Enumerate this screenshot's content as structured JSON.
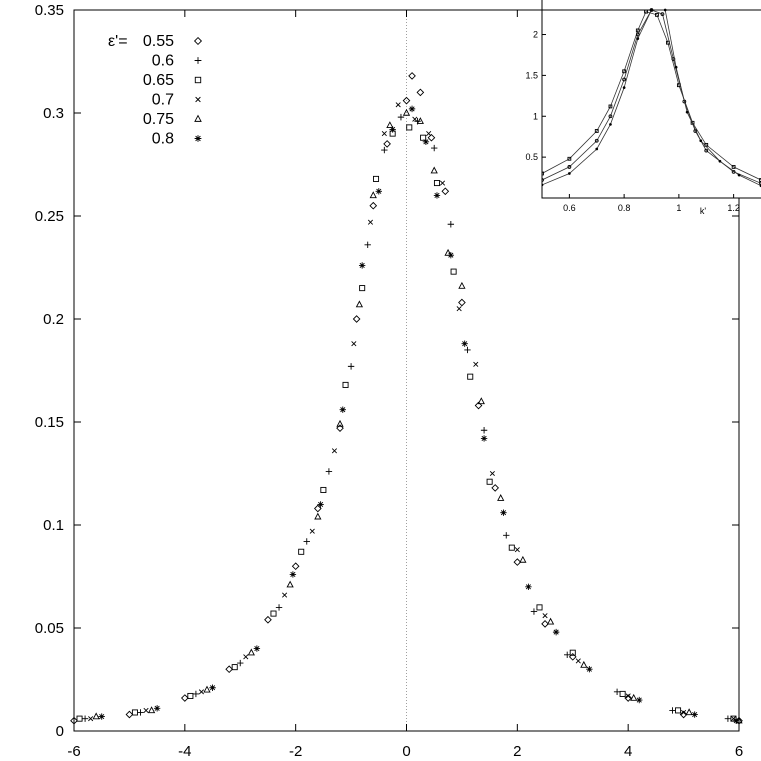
{
  "chart_data": {
    "type": "scatter",
    "title": "",
    "xlabel": "",
    "ylabel": "",
    "xlim": [
      -6,
      6
    ],
    "ylim": [
      0,
      0.35
    ],
    "x_ticks": [
      "-6",
      "-4",
      "-2",
      "0",
      "2",
      "4",
      "6"
    ],
    "y_ticks": [
      "0",
      "0.05",
      "0.1",
      "0.15",
      "0.2",
      "0.25",
      "0.3",
      "0.35"
    ],
    "grid": false,
    "reference_line_x": 0,
    "legend_position": "top-left",
    "legend_title": "ε'=",
    "series": [
      {
        "name": "0.55",
        "marker": "diamond",
        "points": [
          [
            -6.0,
            0.005
          ],
          [
            -5.0,
            0.008
          ],
          [
            -4.0,
            0.016
          ],
          [
            -3.2,
            0.03
          ],
          [
            -2.5,
            0.054
          ],
          [
            -2.0,
            0.08
          ],
          [
            -1.6,
            0.108
          ],
          [
            -1.2,
            0.147
          ],
          [
            -0.9,
            0.2
          ],
          [
            -0.6,
            0.255
          ],
          [
            -0.35,
            0.285
          ],
          [
            0.0,
            0.306
          ],
          [
            0.1,
            0.318
          ],
          [
            0.25,
            0.31
          ],
          [
            0.45,
            0.288
          ],
          [
            0.7,
            0.262
          ],
          [
            1.0,
            0.208
          ],
          [
            1.3,
            0.158
          ],
          [
            1.6,
            0.118
          ],
          [
            2.0,
            0.082
          ],
          [
            2.5,
            0.052
          ],
          [
            3.0,
            0.036
          ],
          [
            4.0,
            0.016
          ],
          [
            5.0,
            0.008
          ],
          [
            6.0,
            0.005
          ]
        ]
      },
      {
        "name": "0.6",
        "marker": "plus",
        "points": [
          [
            -5.8,
            0.006
          ],
          [
            -4.8,
            0.009
          ],
          [
            -3.8,
            0.018
          ],
          [
            -3.0,
            0.033
          ],
          [
            -2.3,
            0.06
          ],
          [
            -1.8,
            0.092
          ],
          [
            -1.4,
            0.126
          ],
          [
            -1.0,
            0.177
          ],
          [
            -0.7,
            0.236
          ],
          [
            -0.4,
            0.282
          ],
          [
            -0.1,
            0.298
          ],
          [
            0.2,
            0.296
          ],
          [
            0.5,
            0.283
          ],
          [
            0.8,
            0.246
          ],
          [
            1.1,
            0.185
          ],
          [
            1.4,
            0.146
          ],
          [
            1.8,
            0.095
          ],
          [
            2.3,
            0.058
          ],
          [
            2.9,
            0.037
          ],
          [
            3.8,
            0.019
          ],
          [
            4.8,
            0.01
          ],
          [
            5.8,
            0.006
          ]
        ]
      },
      {
        "name": "0.65",
        "marker": "square",
        "points": [
          [
            -5.9,
            0.006
          ],
          [
            -4.9,
            0.009
          ],
          [
            -3.9,
            0.017
          ],
          [
            -3.1,
            0.031
          ],
          [
            -2.4,
            0.057
          ],
          [
            -1.9,
            0.087
          ],
          [
            -1.5,
            0.117
          ],
          [
            -1.1,
            0.168
          ],
          [
            -0.8,
            0.215
          ],
          [
            -0.55,
            0.268
          ],
          [
            -0.25,
            0.29
          ],
          [
            0.05,
            0.293
          ],
          [
            0.3,
            0.288
          ],
          [
            0.55,
            0.266
          ],
          [
            0.85,
            0.223
          ],
          [
            1.15,
            0.172
          ],
          [
            1.5,
            0.121
          ],
          [
            1.9,
            0.089
          ],
          [
            2.4,
            0.06
          ],
          [
            3.0,
            0.038
          ],
          [
            3.9,
            0.018
          ],
          [
            4.9,
            0.01
          ],
          [
            5.9,
            0.006
          ]
        ]
      },
      {
        "name": "0.7",
        "marker": "cross",
        "points": [
          [
            -5.7,
            0.006
          ],
          [
            -4.7,
            0.01
          ],
          [
            -3.7,
            0.019
          ],
          [
            -2.9,
            0.036
          ],
          [
            -2.2,
            0.066
          ],
          [
            -1.7,
            0.097
          ],
          [
            -1.3,
            0.136
          ],
          [
            -0.95,
            0.188
          ],
          [
            -0.65,
            0.247
          ],
          [
            -0.4,
            0.29
          ],
          [
            -0.15,
            0.304
          ],
          [
            0.15,
            0.297
          ],
          [
            0.4,
            0.29
          ],
          [
            0.65,
            0.266
          ],
          [
            0.95,
            0.205
          ],
          [
            1.25,
            0.178
          ],
          [
            1.55,
            0.125
          ],
          [
            2.0,
            0.088
          ],
          [
            2.5,
            0.056
          ],
          [
            3.1,
            0.034
          ],
          [
            4.0,
            0.017
          ],
          [
            5.0,
            0.009
          ],
          [
            5.9,
            0.006
          ]
        ]
      },
      {
        "name": "0.75",
        "marker": "triangle",
        "points": [
          [
            -5.6,
            0.007
          ],
          [
            -4.6,
            0.01
          ],
          [
            -3.6,
            0.02
          ],
          [
            -2.8,
            0.038
          ],
          [
            -2.1,
            0.071
          ],
          [
            -1.6,
            0.104
          ],
          [
            -1.2,
            0.149
          ],
          [
            -0.85,
            0.207
          ],
          [
            -0.6,
            0.26
          ],
          [
            -0.3,
            0.294
          ],
          [
            0.0,
            0.3
          ],
          [
            0.25,
            0.296
          ],
          [
            0.5,
            0.272
          ],
          [
            0.75,
            0.232
          ],
          [
            1.0,
            0.216
          ],
          [
            1.35,
            0.16
          ],
          [
            1.7,
            0.113
          ],
          [
            2.1,
            0.083
          ],
          [
            2.6,
            0.053
          ],
          [
            3.2,
            0.032
          ],
          [
            4.1,
            0.016
          ],
          [
            5.1,
            0.009
          ],
          [
            6.0,
            0.005
          ]
        ]
      },
      {
        "name": "0.8",
        "marker": "star",
        "points": [
          [
            -5.5,
            0.007
          ],
          [
            -4.5,
            0.011
          ],
          [
            -3.5,
            0.021
          ],
          [
            -2.7,
            0.04
          ],
          [
            -2.05,
            0.076
          ],
          [
            -1.55,
            0.11
          ],
          [
            -1.15,
            0.156
          ],
          [
            -0.8,
            0.226
          ],
          [
            -0.5,
            0.262
          ],
          [
            -0.25,
            0.292
          ],
          [
            0.1,
            0.302
          ],
          [
            0.35,
            0.286
          ],
          [
            0.55,
            0.26
          ],
          [
            0.8,
            0.231
          ],
          [
            1.05,
            0.188
          ],
          [
            1.4,
            0.142
          ],
          [
            1.75,
            0.106
          ],
          [
            2.2,
            0.07
          ],
          [
            2.7,
            0.048
          ],
          [
            3.3,
            0.03
          ],
          [
            4.2,
            0.015
          ],
          [
            5.2,
            0.008
          ],
          [
            5.95,
            0.005
          ]
        ]
      }
    ],
    "inset": {
      "type": "line",
      "xlabel": "k'",
      "xlim": [
        0.5,
        1.3
      ],
      "ylim": [
        0,
        2.3
      ],
      "x_ticks": [
        "0.6",
        "0.8",
        "1",
        "1.2"
      ],
      "y_ticks": [
        "0.5",
        "1",
        "1.5",
        "2"
      ],
      "series": [
        {
          "marker": "square",
          "points": [
            [
              0.5,
              0.3
            ],
            [
              0.6,
              0.48
            ],
            [
              0.7,
              0.82
            ],
            [
              0.75,
              1.12
            ],
            [
              0.8,
              1.55
            ],
            [
              0.85,
              2.05
            ],
            [
              0.88,
              2.28
            ],
            [
              0.92,
              2.24
            ],
            [
              0.96,
              1.9
            ],
            [
              1.0,
              1.38
            ],
            [
              1.05,
              0.92
            ],
            [
              1.1,
              0.65
            ],
            [
              1.2,
              0.38
            ],
            [
              1.3,
              0.22
            ]
          ]
        },
        {
          "marker": "circle",
          "points": [
            [
              0.5,
              0.22
            ],
            [
              0.6,
              0.38
            ],
            [
              0.7,
              0.7
            ],
            [
              0.75,
              1.0
            ],
            [
              0.8,
              1.45
            ],
            [
              0.85,
              2.0
            ],
            [
              0.9,
              2.3
            ],
            [
              0.94,
              2.25
            ],
            [
              0.98,
              1.7
            ],
            [
              1.02,
              1.18
            ],
            [
              1.06,
              0.82
            ],
            [
              1.1,
              0.58
            ],
            [
              1.2,
              0.32
            ],
            [
              1.3,
              0.18
            ]
          ]
        },
        {
          "marker": "dot",
          "points": [
            [
              0.5,
              0.16
            ],
            [
              0.6,
              0.3
            ],
            [
              0.7,
              0.6
            ],
            [
              0.75,
              0.9
            ],
            [
              0.8,
              1.35
            ],
            [
              0.85,
              1.95
            ],
            [
              0.9,
              2.3
            ],
            [
              0.95,
              2.3
            ],
            [
              0.99,
              1.6
            ],
            [
              1.03,
              1.05
            ],
            [
              1.08,
              0.7
            ],
            [
              1.15,
              0.45
            ],
            [
              1.22,
              0.28
            ],
            [
              1.3,
              0.15
            ]
          ]
        }
      ]
    }
  }
}
